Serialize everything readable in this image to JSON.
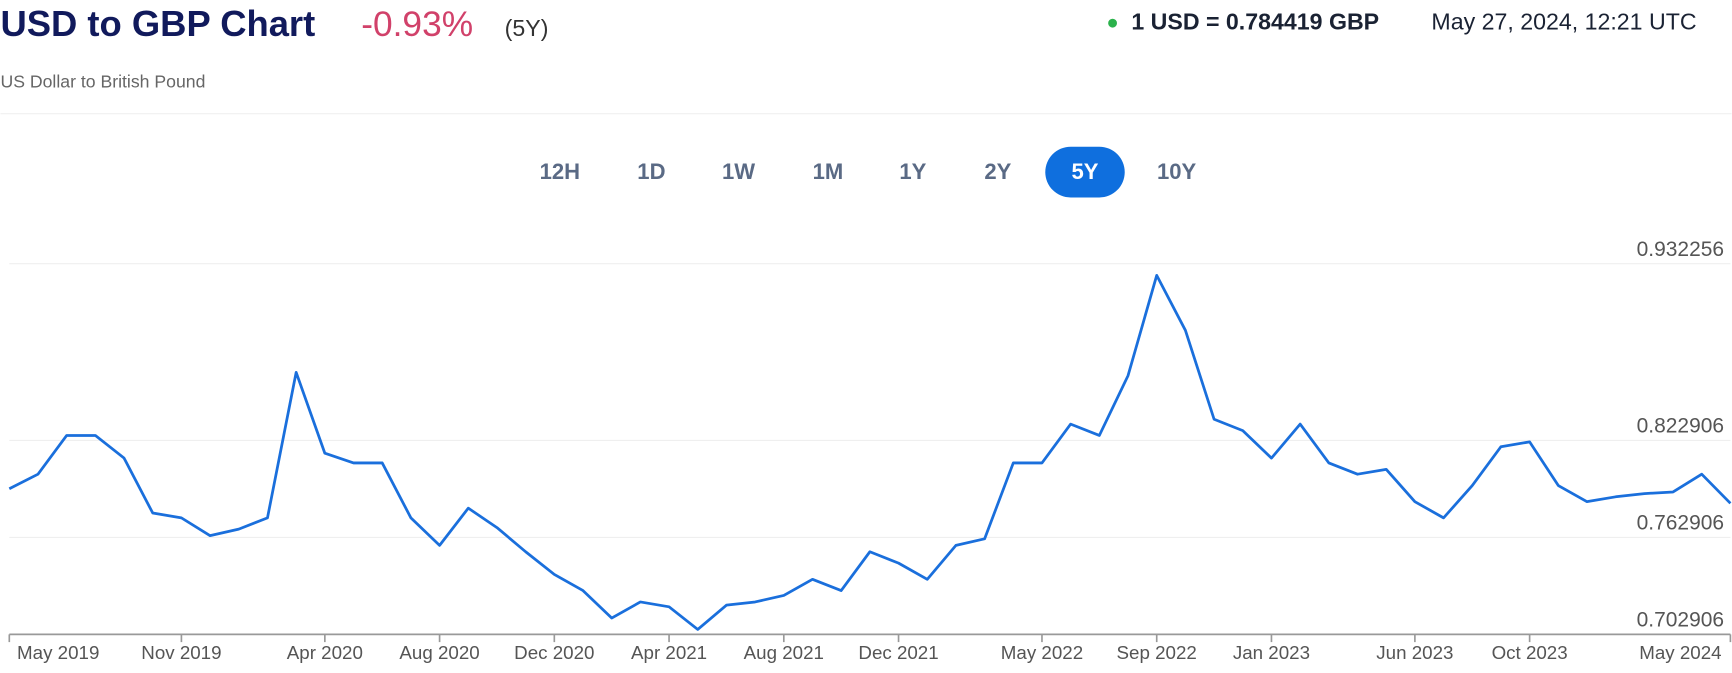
{
  "header": {
    "title": "USD to GBP Chart",
    "change": "-0.93%",
    "period": "(5Y)",
    "subtitle": "US Dollar to British Pound",
    "rate": "1 USD = 0.784419 GBP",
    "timestamp": "May 27, 2024, 12:21 UTC"
  },
  "range_buttons": {
    "labels": [
      "12H",
      "1D",
      "1W",
      "1M",
      "1Y",
      "2Y",
      "5Y",
      "10Y"
    ],
    "active": 6
  },
  "chart_data": {
    "type": "line",
    "color": "#1a6fdc",
    "grid": true,
    "x": [
      "2019-05",
      "2019-06",
      "2019-07",
      "2019-08",
      "2019-09",
      "2019-10",
      "2019-11",
      "2019-12",
      "2020-01",
      "2020-02",
      "2020-03",
      "2020-04",
      "2020-05",
      "2020-06",
      "2020-07",
      "2020-08",
      "2020-09",
      "2020-10",
      "2020-11",
      "2020-12",
      "2021-01",
      "2021-02",
      "2021-03",
      "2021-04",
      "2021-05",
      "2021-06",
      "2021-07",
      "2021-08",
      "2021-09",
      "2021-10",
      "2021-11",
      "2021-12",
      "2022-01",
      "2022-02",
      "2022-03",
      "2022-04",
      "2022-05",
      "2022-06",
      "2022-07",
      "2022-08",
      "2022-09",
      "2022-10",
      "2022-11",
      "2022-12",
      "2023-01",
      "2023-02",
      "2023-03",
      "2023-04",
      "2023-05",
      "2023-06",
      "2023-07",
      "2023-08",
      "2023-09",
      "2023-10",
      "2023-11",
      "2023-12",
      "2024-01",
      "2024-02",
      "2024-03",
      "2024-04",
      "2024-05"
    ],
    "values": [
      0.793,
      0.802,
      0.826,
      0.826,
      0.812,
      0.778,
      0.775,
      0.764,
      0.768,
      0.775,
      0.865,
      0.815,
      0.809,
      0.809,
      0.775,
      0.758,
      0.781,
      0.769,
      0.754,
      0.74,
      0.73,
      0.713,
      0.723,
      0.72,
      0.706,
      0.721,
      0.723,
      0.727,
      0.737,
      0.73,
      0.754,
      0.747,
      0.737,
      0.758,
      0.762,
      0.809,
      0.809,
      0.833,
      0.826,
      0.863,
      0.925,
      0.891,
      0.836,
      0.829,
      0.812,
      0.833,
      0.809,
      0.802,
      0.805,
      0.785,
      0.775,
      0.795,
      0.819,
      0.822,
      0.795,
      0.785,
      0.788,
      0.79,
      0.791,
      0.802,
      0.784
    ],
    "ylim": [
      0.702906,
      0.932256
    ],
    "yticks": [
      0.702906,
      0.762906,
      0.822906,
      0.932256
    ],
    "xticks": [
      {
        "value": "2019-05",
        "label": "May 2019"
      },
      {
        "value": "2019-11",
        "label": "Nov 2019"
      },
      {
        "value": "2020-04",
        "label": "Apr 2020"
      },
      {
        "value": "2020-08",
        "label": "Aug 2020"
      },
      {
        "value": "2020-12",
        "label": "Dec 2020"
      },
      {
        "value": "2021-04",
        "label": "Apr 2021"
      },
      {
        "value": "2021-08",
        "label": "Aug 2021"
      },
      {
        "value": "2021-12",
        "label": "Dec 2021"
      },
      {
        "value": "2022-05",
        "label": "May 2022"
      },
      {
        "value": "2022-09",
        "label": "Sep 2022"
      },
      {
        "value": "2023-01",
        "label": "Jan 2023"
      },
      {
        "value": "2023-06",
        "label": "Jun 2023"
      },
      {
        "value": "2023-10",
        "label": "Oct 2023"
      },
      {
        "value": "2024-05",
        "label": "May 2024"
      }
    ]
  }
}
